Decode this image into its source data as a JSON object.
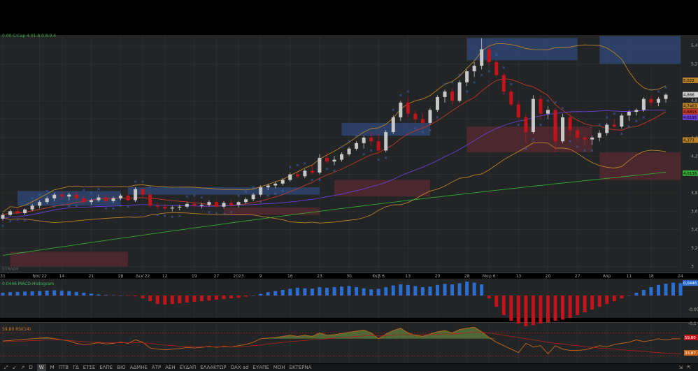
{
  "colors": {
    "bg": "#222425",
    "grid": "#303234",
    "up": "#c8c8c8",
    "down": "#c3141c",
    "bb": "#b8822a",
    "ma_red": "#c0392b",
    "ma_purple": "#6a3fd8",
    "ma_green": "#35a835",
    "macd_pos": "#2a6ed1",
    "macd_neg": "#c3141c",
    "rsi_line": "#c8651a",
    "rsi_fill": "#5a7a3a",
    "zone_blue": "#2f4a7a",
    "zone_red": "#5a2a30",
    "psar": "#3a5dae"
  },
  "legends": {
    "price": "0.00 C:Cap 4.01.8.0.8.9.4",
    "macd": "0.0446 MACD-Histogram",
    "rsi": "59,80 RSI(14)",
    "watermark": "STRADE"
  },
  "price_axis": {
    "ticks": [
      {
        "label": "5,4",
        "v": 5.4
      },
      {
        "label": "5,2",
        "v": 5.2
      },
      {
        "label": "4,8",
        "v": 4.8
      },
      {
        "label": "4,6",
        "v": 4.6
      },
      {
        "label": "4,4",
        "v": 4.4
      },
      {
        "label": "4,2",
        "v": 4.2
      },
      {
        "label": "4",
        "v": 4.0
      },
      {
        "label": "3,8",
        "v": 3.8
      },
      {
        "label": "3,6",
        "v": 3.6
      },
      {
        "label": "3,4",
        "v": 3.4
      },
      {
        "label": "3,2",
        "v": 3.2
      },
      {
        "label": "3",
        "v": 3.0
      }
    ],
    "badges": [
      {
        "label": "5,022",
        "v": 5.022,
        "color": "#b8822a"
      },
      {
        "label": "4,866",
        "v": 4.866,
        "color": "#cfcfcf"
      },
      {
        "label": "4,7463",
        "v": 4.7463,
        "color": "#b8822a"
      },
      {
        "label": "4,6815",
        "v": 4.6815,
        "color": "#c0392b"
      },
      {
        "label": "4,6195",
        "v": 4.6195,
        "color": "#6a3fd8"
      },
      {
        "label": "4,373",
        "v": 4.373,
        "color": "#b8822a"
      },
      {
        "label": "4,0138",
        "v": 4.0138,
        "color": "#35a835"
      }
    ]
  },
  "macd_axis": {
    "ticks": [
      {
        "label": "-0,05",
        "v": -0.05
      },
      {
        "label": "-0,1",
        "v": -0.1
      }
    ],
    "badge": {
      "label": "0,0446",
      "v": 0.0446
    }
  },
  "rsi_axis": {
    "badges": [
      {
        "label": "59,80",
        "v": 59.8,
        "color": "#c3141c"
      },
      {
        "label": "33,87",
        "v": 33.87,
        "color": "#c8651a"
      }
    ]
  },
  "date_axis": [
    {
      "label": "31",
      "i": 0
    },
    {
      "label": "Νοε'22",
      "i": 5
    },
    {
      "label": "14",
      "i": 8
    },
    {
      "label": "21",
      "i": 12
    },
    {
      "label": "28",
      "i": 16
    },
    {
      "label": "Δεκ'22",
      "i": 19
    },
    {
      "label": "12",
      "i": 22
    },
    {
      "label": "19",
      "i": 26
    },
    {
      "label": "27",
      "i": 29
    },
    {
      "label": "2023",
      "i": 32
    },
    {
      "label": "9",
      "i": 35
    },
    {
      "label": "16",
      "i": 39
    },
    {
      "label": "23",
      "i": 43
    },
    {
      "label": "30",
      "i": 47
    },
    {
      "label": "Φεβ 6",
      "i": 51
    },
    {
      "label": "13",
      "i": 55
    },
    {
      "label": "20",
      "i": 59
    },
    {
      "label": "28",
      "i": 63
    },
    {
      "label": "Μαρ 6",
      "i": 66
    },
    {
      "label": "13",
      "i": 70
    },
    {
      "label": "20",
      "i": 74
    },
    {
      "label": "27",
      "i": 78
    },
    {
      "label": "Απρ",
      "i": 82
    },
    {
      "label": "11",
      "i": 85
    },
    {
      "label": "18",
      "i": 88
    },
    {
      "label": "24",
      "i": 92
    }
  ],
  "toolbar": {
    "items": [
      "⤢",
      "↙",
      "↗",
      "D",
      "W",
      "M",
      "ΠΤΒ",
      "ΓΔ",
      "ΕΤΣΕ",
      "ΕΛΠΕ",
      "ΒΙΟ",
      "ΑΔΜΗΕ",
      "ΑΤΡ",
      "ΑΕΗ",
      "ΕΥΔΑΠ",
      "ΕΛΛΑΚΤΩΡ",
      "ΟΑΧ ad",
      "ΕΥΑΠΕ",
      "ΜΟΗ",
      "ΕΚΤΕΡΝΑ"
    ],
    "active_index": 4,
    "right_items": [
      "⇲",
      "⇱"
    ]
  },
  "chart_data": {
    "type": "candlestick",
    "title": "",
    "ylim": [
      2.95,
      5.5
    ],
    "candles": [
      {
        "o": 3.52,
        "h": 3.58,
        "l": 3.5,
        "c": 3.56
      },
      {
        "o": 3.56,
        "h": 3.62,
        "l": 3.55,
        "c": 3.6
      },
      {
        "o": 3.6,
        "h": 3.64,
        "l": 3.57,
        "c": 3.58
      },
      {
        "o": 3.58,
        "h": 3.63,
        "l": 3.56,
        "c": 3.62
      },
      {
        "o": 3.62,
        "h": 3.68,
        "l": 3.6,
        "c": 3.66
      },
      {
        "o": 3.66,
        "h": 3.72,
        "l": 3.63,
        "c": 3.7
      },
      {
        "o": 3.7,
        "h": 3.76,
        "l": 3.68,
        "c": 3.74
      },
      {
        "o": 3.74,
        "h": 3.8,
        "l": 3.71,
        "c": 3.78
      },
      {
        "o": 3.78,
        "h": 3.82,
        "l": 3.73,
        "c": 3.76
      },
      {
        "o": 3.76,
        "h": 3.8,
        "l": 3.72,
        "c": 3.78
      },
      {
        "o": 3.78,
        "h": 3.81,
        "l": 3.72,
        "c": 3.74
      },
      {
        "o": 3.74,
        "h": 3.77,
        "l": 3.68,
        "c": 3.7
      },
      {
        "o": 3.7,
        "h": 3.74,
        "l": 3.67,
        "c": 3.72
      },
      {
        "o": 3.72,
        "h": 3.78,
        "l": 3.7,
        "c": 3.75
      },
      {
        "o": 3.75,
        "h": 3.78,
        "l": 3.69,
        "c": 3.71
      },
      {
        "o": 3.71,
        "h": 3.76,
        "l": 3.69,
        "c": 3.74
      },
      {
        "o": 3.74,
        "h": 3.79,
        "l": 3.72,
        "c": 3.77
      },
      {
        "o": 3.77,
        "h": 3.79,
        "l": 3.71,
        "c": 3.72
      },
      {
        "o": 3.72,
        "h": 3.86,
        "l": 3.7,
        "c": 3.84
      },
      {
        "o": 3.84,
        "h": 3.86,
        "l": 3.76,
        "c": 3.78
      },
      {
        "o": 3.78,
        "h": 3.8,
        "l": 3.64,
        "c": 3.66
      },
      {
        "o": 3.66,
        "h": 3.7,
        "l": 3.62,
        "c": 3.65
      },
      {
        "o": 3.65,
        "h": 3.68,
        "l": 3.61,
        "c": 3.63
      },
      {
        "o": 3.63,
        "h": 3.66,
        "l": 3.6,
        "c": 3.64
      },
      {
        "o": 3.64,
        "h": 3.67,
        "l": 3.61,
        "c": 3.65
      },
      {
        "o": 3.65,
        "h": 3.7,
        "l": 3.63,
        "c": 3.68
      },
      {
        "o": 3.68,
        "h": 3.71,
        "l": 3.64,
        "c": 3.66
      },
      {
        "o": 3.66,
        "h": 3.69,
        "l": 3.63,
        "c": 3.67
      },
      {
        "o": 3.67,
        "h": 3.72,
        "l": 3.65,
        "c": 3.7
      },
      {
        "o": 3.7,
        "h": 3.72,
        "l": 3.64,
        "c": 3.65
      },
      {
        "o": 3.65,
        "h": 3.71,
        "l": 3.63,
        "c": 3.69
      },
      {
        "o": 3.69,
        "h": 3.72,
        "l": 3.65,
        "c": 3.67
      },
      {
        "o": 3.67,
        "h": 3.71,
        "l": 3.64,
        "c": 3.7
      },
      {
        "o": 3.7,
        "h": 3.75,
        "l": 3.68,
        "c": 3.73
      },
      {
        "o": 3.73,
        "h": 3.8,
        "l": 3.71,
        "c": 3.78
      },
      {
        "o": 3.78,
        "h": 3.88,
        "l": 3.76,
        "c": 3.86
      },
      {
        "o": 3.86,
        "h": 3.9,
        "l": 3.83,
        "c": 3.88
      },
      {
        "o": 3.88,
        "h": 3.92,
        "l": 3.85,
        "c": 3.9
      },
      {
        "o": 3.9,
        "h": 3.96,
        "l": 3.88,
        "c": 3.94
      },
      {
        "o": 3.94,
        "h": 4.02,
        "l": 3.92,
        "c": 4.0
      },
      {
        "o": 4.0,
        "h": 4.04,
        "l": 3.96,
        "c": 3.98
      },
      {
        "o": 3.98,
        "h": 4.06,
        "l": 3.96,
        "c": 4.04
      },
      {
        "o": 4.04,
        "h": 4.1,
        "l": 4.0,
        "c": 4.02
      },
      {
        "o": 4.02,
        "h": 4.22,
        "l": 4.0,
        "c": 4.18
      },
      {
        "o": 4.18,
        "h": 4.24,
        "l": 4.12,
        "c": 4.14
      },
      {
        "o": 4.14,
        "h": 4.2,
        "l": 4.1,
        "c": 4.16
      },
      {
        "o": 4.16,
        "h": 4.24,
        "l": 4.14,
        "c": 4.22
      },
      {
        "o": 4.22,
        "h": 4.3,
        "l": 4.2,
        "c": 4.28
      },
      {
        "o": 4.28,
        "h": 4.36,
        "l": 4.26,
        "c": 4.34
      },
      {
        "o": 4.34,
        "h": 4.42,
        "l": 4.28,
        "c": 4.4
      },
      {
        "o": 4.4,
        "h": 4.46,
        "l": 4.32,
        "c": 4.36
      },
      {
        "o": 4.36,
        "h": 4.44,
        "l": 4.22,
        "c": 4.26
      },
      {
        "o": 4.26,
        "h": 4.48,
        "l": 4.24,
        "c": 4.46
      },
      {
        "o": 4.46,
        "h": 4.64,
        "l": 4.44,
        "c": 4.62
      },
      {
        "o": 4.62,
        "h": 4.8,
        "l": 4.58,
        "c": 4.78
      },
      {
        "o": 4.78,
        "h": 4.84,
        "l": 4.62,
        "c": 4.66
      },
      {
        "o": 4.66,
        "h": 4.7,
        "l": 4.56,
        "c": 4.6
      },
      {
        "o": 4.6,
        "h": 4.66,
        "l": 4.52,
        "c": 4.56
      },
      {
        "o": 4.56,
        "h": 4.72,
        "l": 4.54,
        "c": 4.7
      },
      {
        "o": 4.7,
        "h": 4.86,
        "l": 4.68,
        "c": 4.84
      },
      {
        "o": 4.84,
        "h": 4.92,
        "l": 4.78,
        "c": 4.9
      },
      {
        "o": 4.9,
        "h": 4.94,
        "l": 4.76,
        "c": 4.8
      },
      {
        "o": 4.8,
        "h": 5.02,
        "l": 4.78,
        "c": 5.0
      },
      {
        "o": 5.0,
        "h": 5.14,
        "l": 4.96,
        "c": 5.12
      },
      {
        "o": 5.12,
        "h": 5.22,
        "l": 5.06,
        "c": 5.18
      },
      {
        "o": 5.18,
        "h": 5.48,
        "l": 5.14,
        "c": 5.36
      },
      {
        "o": 5.36,
        "h": 5.38,
        "l": 5.18,
        "c": 5.22
      },
      {
        "o": 5.22,
        "h": 5.24,
        "l": 5.06,
        "c": 5.08
      },
      {
        "o": 5.08,
        "h": 5.1,
        "l": 4.86,
        "c": 4.9
      },
      {
        "o": 4.9,
        "h": 4.92,
        "l": 4.74,
        "c": 4.76
      },
      {
        "o": 4.76,
        "h": 4.8,
        "l": 4.6,
        "c": 4.62
      },
      {
        "o": 4.62,
        "h": 4.66,
        "l": 4.34,
        "c": 4.46
      },
      {
        "o": 4.46,
        "h": 4.86,
        "l": 4.44,
        "c": 4.82
      },
      {
        "o": 4.82,
        "h": 4.86,
        "l": 4.6,
        "c": 4.66
      },
      {
        "o": 4.66,
        "h": 4.74,
        "l": 4.6,
        "c": 4.7
      },
      {
        "o": 4.7,
        "h": 4.72,
        "l": 4.24,
        "c": 4.36
      },
      {
        "o": 4.36,
        "h": 4.66,
        "l": 4.34,
        "c": 4.62
      },
      {
        "o": 4.62,
        "h": 4.68,
        "l": 4.42,
        "c": 4.48
      },
      {
        "o": 4.48,
        "h": 4.52,
        "l": 4.36,
        "c": 4.4
      },
      {
        "o": 4.4,
        "h": 4.42,
        "l": 4.32,
        "c": 4.38
      },
      {
        "o": 4.38,
        "h": 4.42,
        "l": 4.32,
        "c": 4.4
      },
      {
        "o": 4.4,
        "h": 4.48,
        "l": 4.36,
        "c": 4.45
      },
      {
        "o": 4.45,
        "h": 4.56,
        "l": 4.42,
        "c": 4.54
      },
      {
        "o": 4.54,
        "h": 4.6,
        "l": 4.5,
        "c": 4.52
      },
      {
        "o": 4.52,
        "h": 4.66,
        "l": 4.5,
        "c": 4.64
      },
      {
        "o": 4.64,
        "h": 4.7,
        "l": 4.58,
        "c": 4.68
      },
      {
        "o": 4.68,
        "h": 4.72,
        "l": 4.64,
        "c": 4.7
      },
      {
        "o": 4.7,
        "h": 4.84,
        "l": 4.68,
        "c": 4.82
      },
      {
        "o": 4.82,
        "h": 4.86,
        "l": 4.74,
        "c": 4.78
      },
      {
        "o": 4.78,
        "h": 4.84,
        "l": 4.74,
        "c": 4.82
      },
      {
        "o": 4.82,
        "h": 4.88,
        "l": 4.78,
        "c": 4.866
      }
    ],
    "macd_hist": [
      0.01,
      0.012,
      0.013,
      0.014,
      0.015,
      0.016,
      0.018,
      0.019,
      0.018,
      0.016,
      0.013,
      0.01,
      0.007,
      0.004,
      0.002,
      0.001,
      0.0,
      -0.001,
      -0.003,
      -0.01,
      -0.02,
      -0.03,
      -0.032,
      -0.03,
      -0.028,
      -0.025,
      -0.022,
      -0.02,
      -0.018,
      -0.015,
      -0.012,
      -0.01,
      -0.008,
      -0.004,
      0.0,
      0.006,
      0.012,
      0.016,
      0.02,
      0.024,
      0.028,
      0.026,
      0.025,
      0.03,
      0.028,
      0.03,
      0.032,
      0.034,
      0.03,
      0.026,
      0.022,
      0.024,
      0.03,
      0.036,
      0.04,
      0.038,
      0.034,
      0.03,
      0.032,
      0.038,
      0.042,
      0.04,
      0.044,
      0.05,
      0.046,
      0.04,
      -0.01,
      -0.04,
      -0.07,
      -0.09,
      -0.1,
      -0.11,
      -0.106,
      -0.1,
      -0.096,
      -0.09,
      -0.086,
      -0.08,
      -0.07,
      -0.06,
      -0.05,
      -0.04,
      -0.03,
      -0.02,
      -0.01,
      0.0,
      0.01,
      0.02,
      0.03,
      0.038,
      0.042,
      0.046,
      0.0446
    ],
    "rsi": [
      56,
      57,
      58,
      59,
      60,
      61,
      62,
      60,
      58,
      56,
      52,
      50,
      51,
      53,
      51,
      52,
      54,
      52,
      58,
      54,
      44,
      42,
      41,
      42,
      43,
      45,
      44,
      45,
      47,
      45,
      47,
      46,
      48,
      50,
      54,
      60,
      61,
      62,
      64,
      66,
      64,
      66,
      64,
      70,
      66,
      67,
      69,
      71,
      73,
      75,
      70,
      60,
      68,
      74,
      78,
      70,
      66,
      64,
      68,
      72,
      74,
      70,
      76,
      78,
      80,
      72,
      62,
      54,
      48,
      42,
      36,
      52,
      46,
      48,
      34,
      48,
      42,
      40,
      40,
      41,
      44,
      48,
      46,
      50,
      52,
      54,
      58,
      55,
      57,
      60,
      58,
      60,
      59.8
    ],
    "rsi_signal": [
      55,
      55,
      56,
      56,
      57,
      57,
      58,
      58,
      58,
      57,
      56,
      55,
      54,
      54,
      53,
      53,
      53,
      53,
      53,
      53,
      52,
      50,
      49,
      48,
      47,
      47,
      46,
      46,
      46,
      46,
      46,
      46,
      46,
      47,
      48,
      49,
      51,
      52,
      54,
      55,
      56,
      57,
      58,
      59,
      60,
      61,
      62,
      63,
      64,
      65,
      65,
      65,
      65,
      66,
      67,
      67,
      67,
      67,
      67,
      68,
      68,
      68,
      69,
      70,
      71,
      71,
      70,
      68,
      66,
      64,
      62,
      60,
      58,
      56,
      54,
      52,
      51,
      49,
      48,
      46,
      45,
      44,
      43,
      42,
      41,
      40,
      39,
      38,
      37,
      36,
      35,
      34.5,
      33.87
    ]
  }
}
